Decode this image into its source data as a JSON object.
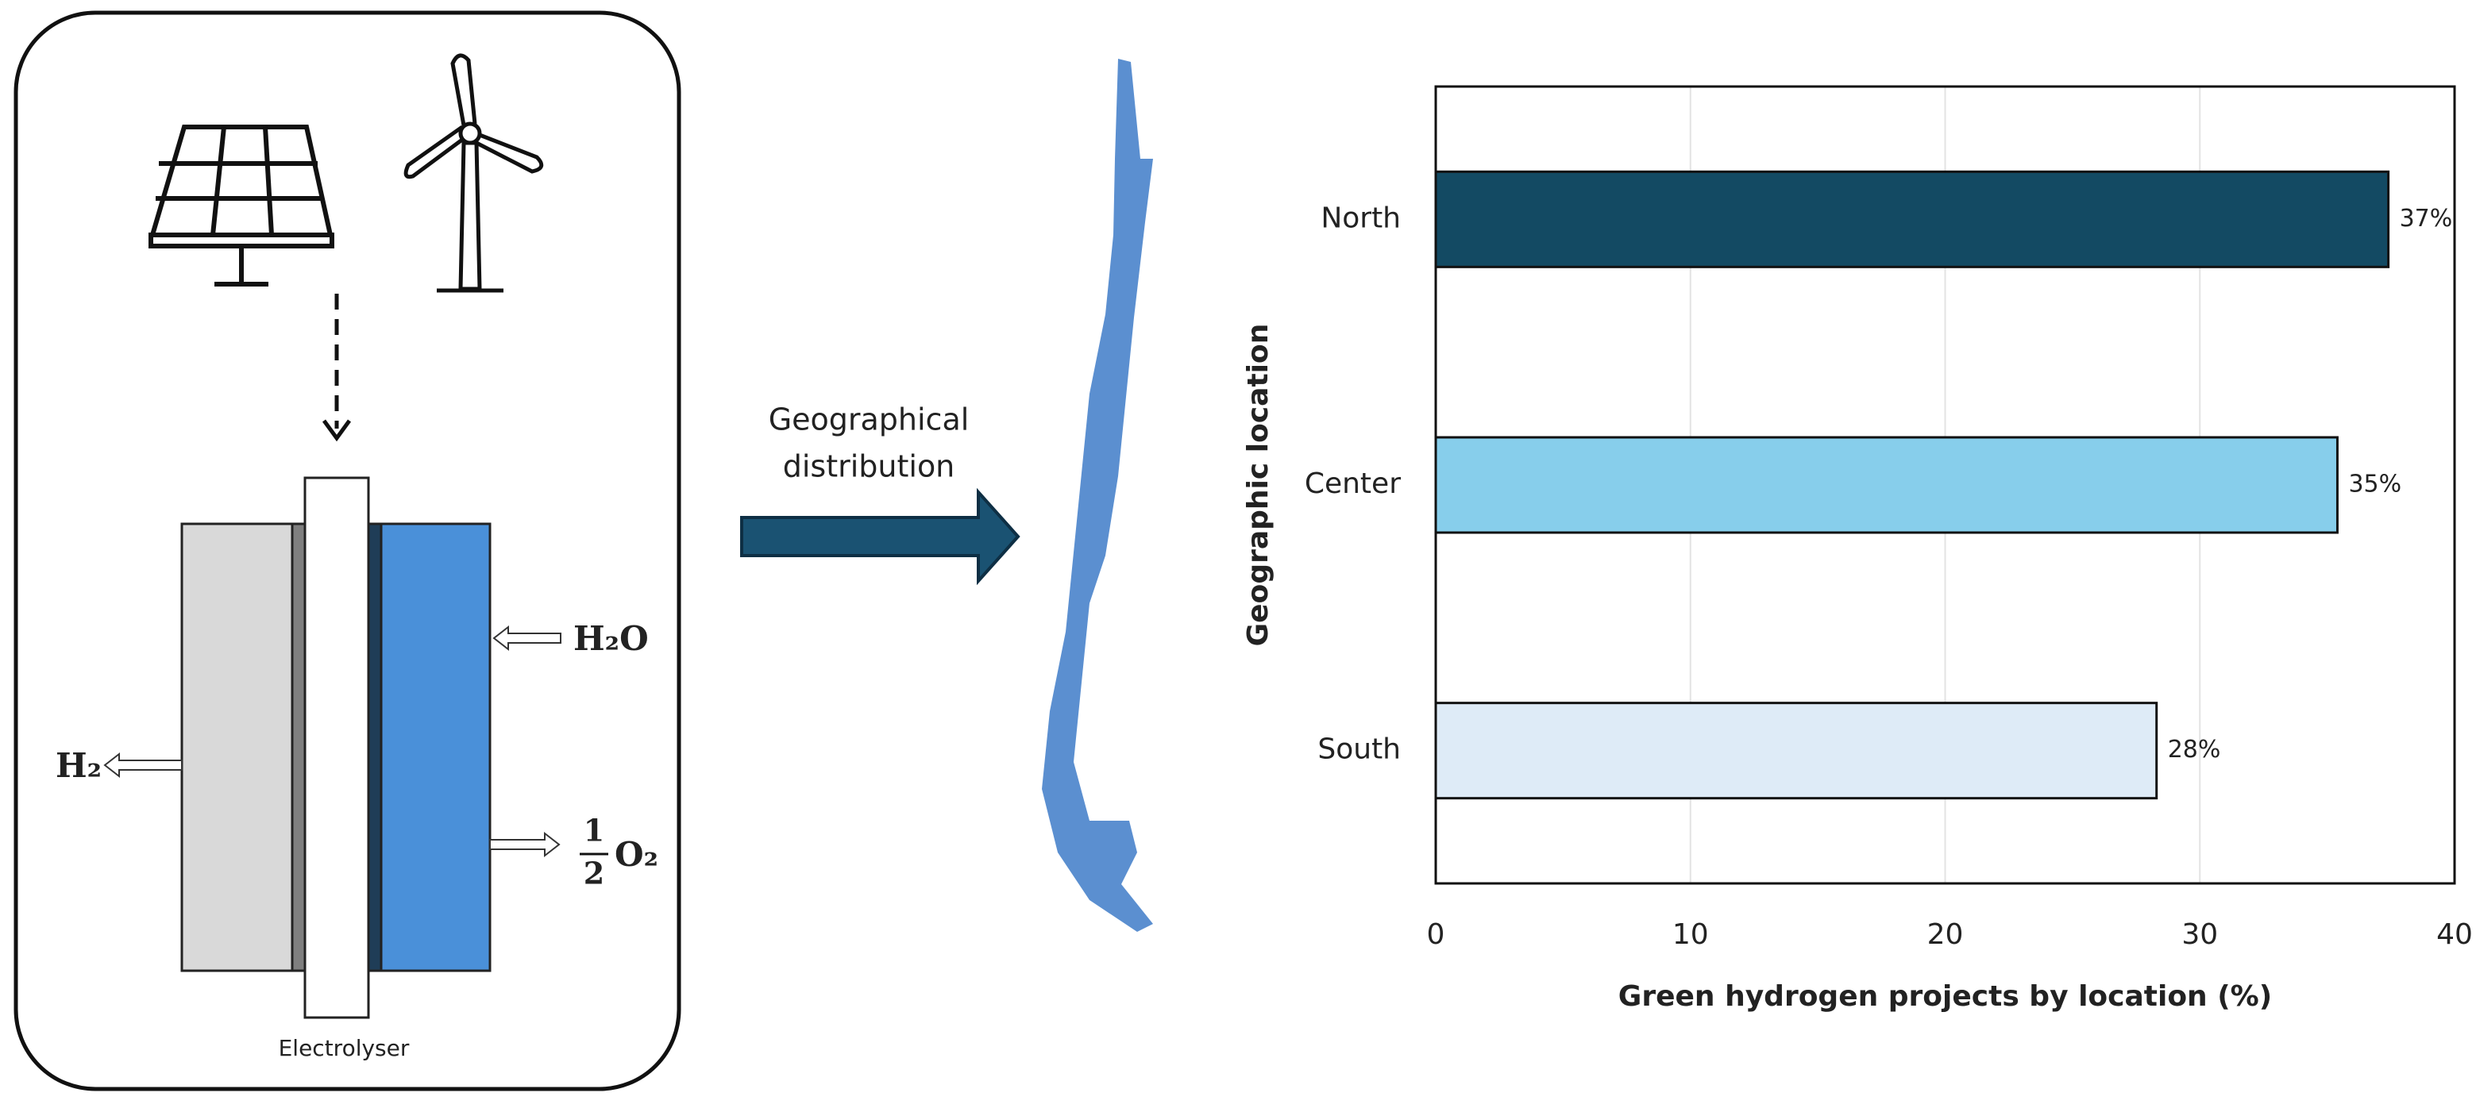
{
  "diagram": {
    "arrow_label": [
      "Geographical",
      "distribution"
    ],
    "device": "Electrolyser",
    "hydrogen": "H₂",
    "water": "H₂O",
    "oxygen": {
      "numerator": "1",
      "denominator": "2",
      "species": "O₂"
    }
  },
  "chart_data": {
    "type": "bar",
    "orientation": "horizontal",
    "xlabel": "Green hydrogen projects by location (%)",
    "ylabel": "Geographic location",
    "categories": [
      "North",
      "Center",
      "South"
    ],
    "values": [
      37.4,
      35.4,
      28.3
    ],
    "value_labels": [
      "37%",
      "35%",
      "28%"
    ],
    "colors": [
      "#134a63",
      "#87ceeb",
      "#deebf7"
    ],
    "xlim": [
      0,
      40
    ],
    "xticks": [
      0,
      10,
      20,
      30,
      40
    ],
    "grid": true
  }
}
